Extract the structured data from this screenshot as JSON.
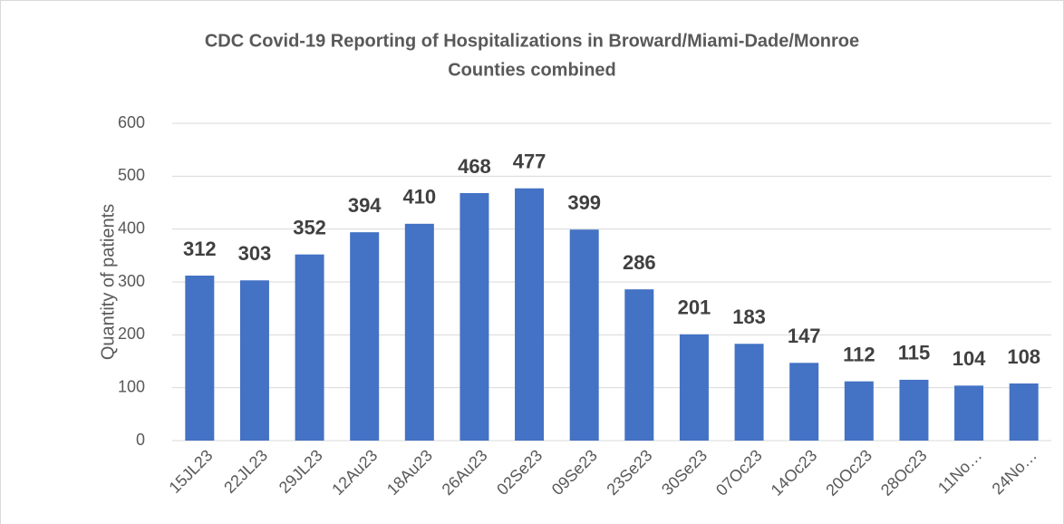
{
  "chart_data": {
    "type": "bar",
    "title": [
      "CDC Covid-19 Reporting of Hospitalizations in Broward/Miami-Dade/Monroe",
      "Counties combined"
    ],
    "y_label": "Quantity of patients",
    "categories": [
      "15JL23",
      "22JL23",
      "29JL23",
      "12Au23",
      "18Au23",
      "26Au23",
      "02Se23",
      "09Se23",
      "23Se23",
      "30Se23",
      "07Oc23",
      "14Oc23",
      "20Oc23",
      "28Oc23",
      "11No…",
      "24No…"
    ],
    "values": [
      312,
      303,
      352,
      394,
      410,
      468,
      477,
      399,
      286,
      201,
      183,
      147,
      112,
      115,
      104,
      108
    ],
    "color": "#4472c4",
    "ylim": [
      0,
      600
    ],
    "yticks": [
      0,
      100,
      200,
      300,
      400,
      500,
      600
    ],
    "grid": true
  }
}
